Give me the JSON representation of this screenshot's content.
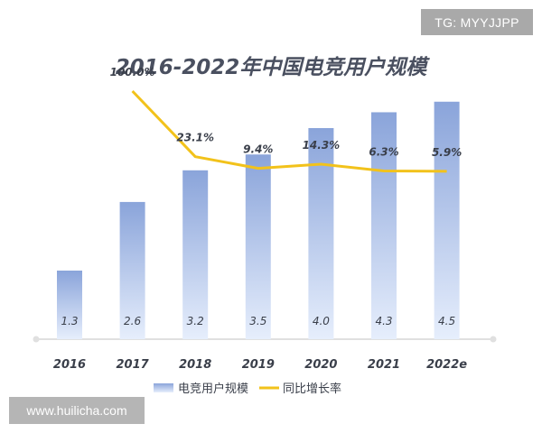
{
  "badge": {
    "text": "TG: MYYJJPP"
  },
  "watermark": {
    "text": "www.huilicha.com"
  },
  "colors": {
    "bar_top": "#8aa4da",
    "bar_bottom": "#e6eefc",
    "line": "#f2c21b",
    "axis": "#e0e0e0",
    "text": "#3a3f4a"
  },
  "chart_data": {
    "type": "bar",
    "title": "2016-2022年中国电竞用户规模",
    "categories": [
      "2016",
      "2017",
      "2018",
      "2019",
      "2020",
      "2021",
      "2022e"
    ],
    "series": [
      {
        "name": "电竞用户规模",
        "type": "bar",
        "values": [
          1.3,
          2.6,
          3.2,
          3.5,
          4.0,
          4.3,
          4.5
        ]
      },
      {
        "name": "同比增长率",
        "type": "line",
        "values": [
          null,
          100.0,
          23.1,
          9.4,
          14.3,
          6.3,
          5.9
        ],
        "labels": [
          "",
          "100.0%",
          "23.1%",
          "9.4%",
          "14.3%",
          "6.3%",
          "5.9%"
        ]
      }
    ],
    "legend": "bottom-center",
    "grid": false
  }
}
